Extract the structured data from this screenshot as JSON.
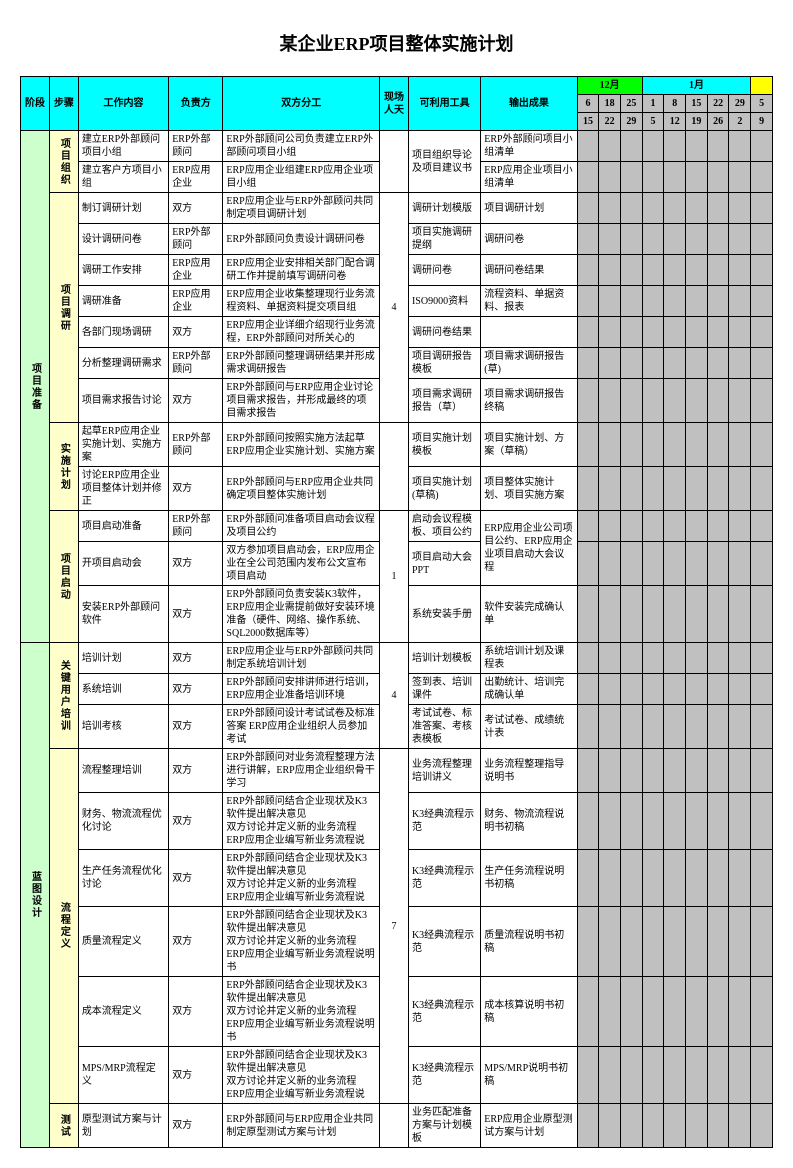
{
  "title": "某企业ERP项目整体实施计划",
  "headers": {
    "phase": "阶段",
    "stage": "步骤",
    "content": "工作内容",
    "owner": "负责方",
    "division": "双方分工",
    "days": "现场人天",
    "tools": "可利用工具",
    "output": "输出成果",
    "month12": "12月",
    "month1": "1月"
  },
  "dateRow1": [
    "6",
    "18",
    "25",
    "1",
    "8",
    "15",
    "22",
    "29",
    "5"
  ],
  "dateRow2": [
    "15",
    "22",
    "29",
    "5",
    "12",
    "19",
    "26",
    "2",
    "9"
  ],
  "phases": [
    {
      "name": "项目准备",
      "stages": [
        {
          "name": "项目组织",
          "rows": [
            {
              "content": "建立ERP外部顾问项目小组",
              "owner": "ERP外部顾问",
              "division": "ERP外部顾问公司负责建立ERP外部顾问项目小组",
              "tools_merge": {
                "text": "项目组织导论及项目建议书",
                "span": 2
              },
              "output": "ERP外部顾问项目小组清单"
            },
            {
              "content": "建立客户方项目小组",
              "owner": "ERP应用企业",
              "division": "ERP应用企业组建ERP应用企业项目小组",
              "output": "ERP应用企业项目小组清单"
            }
          ],
          "days": ""
        },
        {
          "name": "项目调研",
          "days": "4",
          "rows": [
            {
              "content": "制订调研计划",
              "owner": "双方",
              "division": "ERP应用企业与ERP外部顾问共同制定项目调研计划",
              "tools": "调研计划模版",
              "output": "项目调研计划"
            },
            {
              "content": "设计调研问卷",
              "owner": "ERP外部顾问",
              "division": "ERP外部顾问负责设计调研问卷",
              "tools": "项目实施调研提纲",
              "output": "调研问卷"
            },
            {
              "content": "调研工作安排",
              "owner": "ERP应用企业",
              "division": "ERP应用企业安排相关部门配合调研工作并提前填写调研问卷",
              "tools": "调研问卷",
              "output": "调研问卷结果"
            },
            {
              "content": "调研准备",
              "owner": "ERP应用企业",
              "division": "ERP应用企业收集整理现行业务流程资料、单据资料提交项目组",
              "tools": "ISO9000资料",
              "output": "流程资料、单据资料、报表"
            },
            {
              "content": "各部门现场调研",
              "owner": "双方",
              "division": "ERP应用企业详细介绍现行业务流程，ERP外部顾问对所关心的",
              "tools": "调研问卷结果",
              "output": ""
            },
            {
              "content": "分析整理调研需求",
              "owner": "ERP外部顾问",
              "division": "ERP外部顾问整理调研结果并形成需求调研报告",
              "tools": "项目调研报告模板",
              "output": "项目需求调研报告(草)"
            },
            {
              "content": "项目需求报告讨论",
              "owner": "双方",
              "division": "ERP外部顾问与ERP应用企业讨论项目需求报告，并形成最终的项目需求报告",
              "tools": "项目需求调研报告（草）",
              "output": "项目需求调研报告终稿"
            }
          ]
        },
        {
          "name": "实施计划",
          "days": "",
          "rows": [
            {
              "content": "起草ERP应用企业实施计划、实施方案",
              "owner": "ERP外部顾问",
              "division": "ERP外部顾问按照实施方法起草ERP应用企业实施计划、实施方案",
              "tools": "项目实施计划模板",
              "output": "项目实施计划、方案（草稿）"
            },
            {
              "content": "讨论ERP应用企业项目整体计划并修正",
              "owner": "双方",
              "division": "ERP外部顾问与ERP应用企业共同确定项目整体实施计划",
              "tools": "项目实施计划(草稿)",
              "output": "项目整体实施计划、项目实施方案"
            }
          ]
        },
        {
          "name": "项目启动",
          "days": "1",
          "rows": [
            {
              "content": "项目启动准备",
              "owner": "ERP外部顾问",
              "division": "ERP外部顾问准备项目启动会议程及项目公约",
              "tools": "启动会议程模板、项目公约",
              "output_merge": {
                "text": "ERP应用企业公司项目公约、ERP应用企业项目启动大会议程",
                "span": 2
              }
            },
            {
              "content": "开项目启动会",
              "owner": "双方",
              "division": "双方参加项目启动会，ERP应用企业在全公司范围内发布公文宣布项目启动",
              "tools": "项目启动大会PPT"
            },
            {
              "content": "安装ERP外部顾问软件",
              "owner": "双方",
              "division": "ERP外部顾问负责安装K3软件，ERP应用企业需提前做好安装环境准备（硬件、网络、操作系统、SQL2000数据库等）",
              "tools": "系统安装手册",
              "output": "软件安装完成确认单"
            }
          ]
        }
      ]
    },
    {
      "name": "蓝图设计",
      "stages": [
        {
          "name": "关键用户培训",
          "days": "4",
          "rows": [
            {
              "content": "培训计划",
              "owner": "双方",
              "division": "ERP应用企业与ERP外部顾问共同制定系统培训计划",
              "tools": "培训计划模板",
              "output": "系统培训计划及课程表"
            },
            {
              "content": "系统培训",
              "owner": "双方",
              "division": "ERP外部顾问安排讲师进行培训，ERP应用企业准备培训环境",
              "tools": "签到表、培训课件",
              "output": "出勤统计、培训完成确认单"
            },
            {
              "content": "培训考核",
              "owner": "双方",
              "division": "ERP外部顾问设计考试试卷及标准答案  ERP应用企业组织人员参加考试",
              "tools": "考试试卷、标准答案、考核表模板",
              "output": "考试试卷、成绩统计表"
            }
          ]
        },
        {
          "name": "流程定义",
          "days": "7",
          "rows": [
            {
              "content": "流程整理培训",
              "owner": "双方",
              "division": "ERP外部顾问对业务流程整理方法进行讲解，ERP应用企业组织骨干学习",
              "tools": "业务流程整理培训讲义",
              "output": "业务流程整理指导说明书"
            },
            {
              "content": "财务、物流流程优化讨论",
              "owner": "双方",
              "division": "ERP外部顾问结合企业现状及K3软件提出解决意见\n双方讨论并定义新的业务流程\nERP应用企业编写新业务流程说",
              "tools": "K3经典流程示范",
              "output": "财务、物流流程说明书初稿"
            },
            {
              "content": "生产任务流程优化讨论",
              "owner": "双方",
              "division": "ERP外部顾问结合企业现状及K3软件提出解决意见\n双方讨论并定义新的业务流程\nERP应用企业编写新业务流程说",
              "tools": "K3经典流程示范",
              "output": "生产任务流程说明书初稿"
            },
            {
              "content": "质量流程定义",
              "owner": "双方",
              "division": "ERP外部顾问结合企业现状及K3软件提出解决意见\n双方讨论并定义新的业务流程\nERP应用企业编写新业务流程说明书",
              "tools": "K3经典流程示范",
              "output": "质量流程说明书初稿"
            },
            {
              "content": "成本流程定义",
              "owner": "双方",
              "division": "ERP外部顾问结合企业现状及K3软件提出解决意见\n双方讨论并定义新的业务流程\nERP应用企业编写新业务流程说明书",
              "tools": "K3经典流程示范",
              "output": "成本核算说明书初稿"
            },
            {
              "content": "MPS/MRP流程定义",
              "owner": "双方",
              "division": "ERP外部顾问结合企业现状及K3软件提出解决意见\n双方讨论并定义新的业务流程\nERP应用企业编写新业务流程说",
              "tools": "K3经典流程示范",
              "output": "MPS/MRP说明书初稿"
            }
          ]
        },
        {
          "name": "测试",
          "days": "",
          "partial": true,
          "rows": [
            {
              "content": "原型测试方案与计划",
              "owner": "双方",
              "division": "ERP外部顾问与ERP应用企业共同制定原型测试方案与计划",
              "tools": "业务匹配准备方案与计划模板",
              "output": "ERP应用企业原型测试方案与计划"
            }
          ]
        }
      ]
    }
  ],
  "colors": {
    "headerBlue": "#00ffff",
    "headerGreen": "#00ff00",
    "headerYellow": "#ffff00",
    "phaseGreen": "#ccffcc",
    "stageYellow": "#ffffcc",
    "gantt": "#c0c0c0"
  }
}
